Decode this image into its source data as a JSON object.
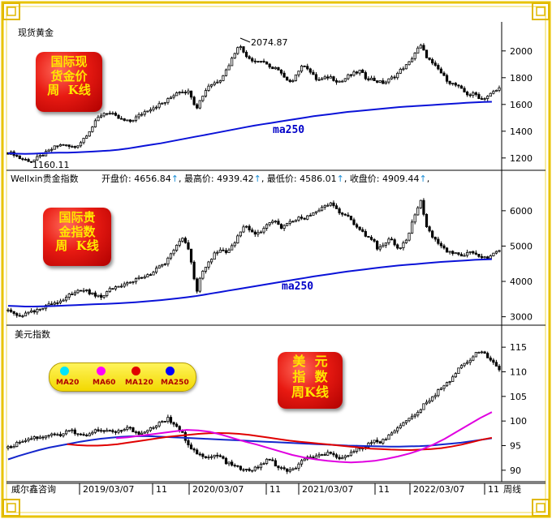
{
  "chart_data": [
    {
      "type": "candlestick",
      "title": "现货黄金",
      "annotations": [
        "2074.87",
        "1160.11"
      ],
      "moving_average_label": "ma250",
      "y_ticks": [
        1200,
        1400,
        1600,
        1800,
        2000
      ],
      "ylim": [
        1120,
        2120
      ],
      "series": [
        {
          "name": "close",
          "values": [
            1240,
            1230,
            1195,
            1185,
            1175,
            1205,
            1230,
            1260,
            1290,
            1300,
            1285,
            1280,
            1320,
            1380,
            1440,
            1510,
            1540,
            1530,
            1500,
            1480,
            1470,
            1500,
            1530,
            1560,
            1580,
            1600,
            1620,
            1660,
            1700,
            1700,
            1690,
            1570,
            1660,
            1740,
            1760,
            1790,
            1860,
            1950,
            2050,
            1980,
            1940,
            1920,
            1930,
            1870,
            1880,
            1830,
            1770,
            1790,
            1860,
            1900,
            1830,
            1780,
            1790,
            1810,
            1780,
            1770,
            1810,
            1830,
            1850,
            1800,
            1790,
            1770,
            1760,
            1790,
            1820,
            1870,
            1900,
            1980,
            2040,
            1960,
            1900,
            1860,
            1800,
            1760,
            1740,
            1700,
            1670,
            1680,
            1640,
            1660,
            1690,
            1720
          ]
        },
        {
          "name": "ma250",
          "values": [
            1235,
            1232,
            1230,
            1232,
            1235,
            1238,
            1240,
            1240,
            1242,
            1245,
            1248,
            1252,
            1256,
            1262,
            1270,
            1280,
            1290,
            1300,
            1310,
            1322,
            1334,
            1346,
            1358,
            1370,
            1382,
            1394,
            1406,
            1418,
            1430,
            1442,
            1452,
            1462,
            1472,
            1482,
            1492,
            1502,
            1512,
            1520,
            1528,
            1536,
            1544,
            1550,
            1556,
            1562,
            1568,
            1574,
            1580,
            1584,
            1588,
            1592,
            1596,
            1600,
            1604,
            1608,
            1612,
            1616,
            1618,
            1620
          ]
        }
      ]
    },
    {
      "type": "candlestick",
      "title": "Wellxin贵金指数",
      "quote": {
        "open_label": "开盘价:",
        "open": "4656.84",
        "high_label": "最高价:",
        "high": "4939.42",
        "low_label": "最低价:",
        "low": "4586.01",
        "close_label": "收盘价:",
        "close": "4909.44",
        "arrow": "↑"
      },
      "moving_average_label": "ma250",
      "y_ticks": [
        3000,
        4000,
        5000,
        6000
      ],
      "ylim": [
        2830,
        6800
      ],
      "series": [
        {
          "name": "close",
          "values": [
            3180,
            3090,
            3030,
            3080,
            3130,
            3180,
            3260,
            3350,
            3420,
            3500,
            3600,
            3680,
            3760,
            3740,
            3620,
            3560,
            3660,
            3780,
            3860,
            3930,
            4010,
            4060,
            4110,
            4160,
            4260,
            4410,
            4560,
            4810,
            5060,
            5210,
            4810,
            3660,
            4260,
            4560,
            4760,
            4910,
            4810,
            5010,
            5310,
            5610,
            5460,
            5310,
            5460,
            5610,
            5760,
            5460,
            5610,
            5710,
            5810,
            5760,
            5910,
            6010,
            6110,
            6210,
            6060,
            5910,
            5860,
            5660,
            5510,
            5310,
            5210,
            4910,
            5010,
            5210,
            4910,
            5010,
            5310,
            5860,
            6310,
            5560,
            5260,
            5060,
            4910,
            4810,
            4760,
            4710,
            4810,
            4760,
            4710,
            4660,
            4760,
            4910
          ]
        },
        {
          "name": "ma250",
          "values": [
            3310,
            3300,
            3290,
            3290,
            3295,
            3300,
            3310,
            3320,
            3330,
            3340,
            3350,
            3360,
            3370,
            3380,
            3395,
            3410,
            3430,
            3450,
            3470,
            3495,
            3520,
            3550,
            3580,
            3620,
            3660,
            3700,
            3740,
            3780,
            3820,
            3860,
            3900,
            3940,
            3980,
            4020,
            4060,
            4100,
            4140,
            4175,
            4210,
            4245,
            4280,
            4310,
            4340,
            4370,
            4400,
            4425,
            4450,
            4470,
            4490,
            4510,
            4530,
            4550,
            4565,
            4580,
            4595,
            4610,
            4620,
            4630
          ]
        }
      ]
    },
    {
      "type": "candlestick",
      "title": "美元指数",
      "y_ticks": [
        90,
        95,
        100,
        105,
        110,
        115
      ],
      "ylim": [
        88,
        117
      ],
      "x_ticks": [
        "2019/03/07",
        "11",
        "2020/03/07",
        "11",
        "2021/03/07",
        "11",
        "2022/03/07",
        "11"
      ],
      "x_axis_left_label": "威尔鑫咨询",
      "x_axis_right_label": "周线",
      "legend": [
        "MA20",
        "MA60",
        "MA120",
        "MA250"
      ],
      "legend_colors": [
        "#00e5ff",
        "#ff00ff",
        "#e00000",
        "#0000ff"
      ],
      "series": [
        {
          "name": "close",
          "values": [
            94.5,
            95.2,
            96.0,
            96.3,
            96.8,
            96.5,
            97.2,
            97.5,
            97.0,
            97.8,
            98.0,
            97.5,
            97.0,
            97.5,
            98.2,
            97.8,
            98.0,
            97.6,
            98.3,
            98.5,
            97.8,
            97.5,
            98.2,
            99.0,
            99.8,
            100.5,
            99.0,
            98.2,
            95.8,
            94.2,
            93.0,
            92.4,
            92.8,
            93.0,
            91.8,
            91.0,
            90.6,
            90.0,
            89.8,
            90.6,
            91.6,
            92.2,
            91.0,
            90.2,
            89.7,
            90.5,
            91.8,
            92.4,
            92.6,
            93.0,
            93.5,
            92.8,
            92.0,
            93.0,
            93.8,
            94.5,
            95.0,
            96.0,
            95.5,
            96.2,
            97.5,
            98.8,
            99.5,
            100.5,
            101.5,
            103.0,
            104.0,
            105.5,
            107.0,
            108.0,
            109.5,
            111.0,
            112.0,
            113.5,
            114.5,
            113.0,
            112.0,
            110.5
          ]
        },
        {
          "name": "MA250",
          "values": [
            92.2,
            92.9,
            93.5,
            94.1,
            94.6,
            95.0,
            95.4,
            95.8,
            96.1,
            96.4,
            96.6,
            96.8,
            96.9,
            96.95,
            96.9,
            96.8,
            96.7,
            96.6,
            96.5,
            96.4,
            96.3,
            96.2,
            96.1,
            96.0,
            95.9,
            95.8,
            95.7,
            95.6,
            95.5,
            95.4,
            95.3,
            95.2,
            95.1,
            95.0,
            94.95,
            94.9,
            94.85,
            94.8,
            94.8,
            94.85,
            94.9,
            95.0,
            95.2,
            95.4,
            95.6,
            95.9,
            96.2,
            96.5
          ]
        },
        {
          "name": "MA120",
          "values": [
            95.3,
            95.1,
            95.0,
            95.0,
            95.1,
            95.3,
            95.6,
            95.9,
            96.2,
            96.5,
            96.8,
            97.0,
            97.2,
            97.4,
            97.5,
            97.55,
            97.5,
            97.4,
            97.2,
            96.9,
            96.6,
            96.3,
            96.0,
            95.8,
            95.6,
            95.4,
            95.2,
            95.0,
            94.8,
            94.6,
            94.4,
            94.3,
            94.2,
            94.15,
            94.1,
            94.2,
            94.3,
            94.5,
            94.8,
            95.2,
            95.7,
            96.2,
            96.6
          ]
        },
        {
          "name": "MA60",
          "values": [
            96.5,
            96.7,
            97.0,
            97.3,
            97.6,
            97.9,
            98.2,
            98.1,
            97.8,
            97.2,
            96.5,
            95.8,
            95.2,
            94.5,
            93.8,
            93.1,
            92.6,
            92.2,
            91.9,
            91.7,
            91.6,
            91.7,
            91.9,
            92.3,
            92.8,
            93.4,
            94.2,
            95.2,
            96.4,
            97.8,
            99.2,
            100.6,
            101.8
          ]
        }
      ]
    }
  ]
}
